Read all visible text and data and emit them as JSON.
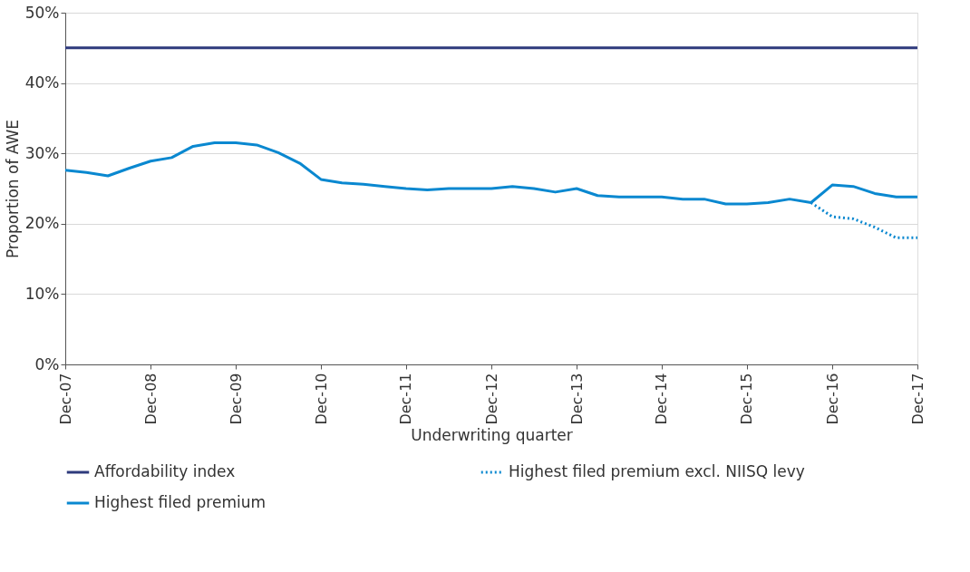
{
  "chart_data": {
    "type": "line",
    "xlabel": "Underwriting quarter",
    "ylabel": "Proportion of AWE",
    "x": [
      "2007-12",
      "2008-03",
      "2008-06",
      "2008-09",
      "2008-12",
      "2009-03",
      "2009-06",
      "2009-09",
      "2009-12",
      "2010-03",
      "2010-06",
      "2010-09",
      "2010-12",
      "2011-03",
      "2011-06",
      "2011-09",
      "2011-12",
      "2012-03",
      "2012-06",
      "2012-09",
      "2012-12",
      "2013-03",
      "2013-06",
      "2013-09",
      "2013-12",
      "2014-03",
      "2014-06",
      "2014-09",
      "2014-12",
      "2015-03",
      "2015-06",
      "2015-09",
      "2015-12",
      "2016-03",
      "2016-06",
      "2016-09",
      "2016-12",
      "2017-03",
      "2017-06",
      "2017-09",
      "2017-12"
    ],
    "series": [
      {
        "name": "Affordability index",
        "color": "#2e3a7c",
        "line_style": "solid",
        "values": [
          45,
          45,
          45,
          45,
          45,
          45,
          45,
          45,
          45,
          45,
          45,
          45,
          45,
          45,
          45,
          45,
          45,
          45,
          45,
          45,
          45,
          45,
          45,
          45,
          45,
          45,
          45,
          45,
          45,
          45,
          45,
          45,
          45,
          45,
          45,
          45,
          45,
          45,
          45,
          45,
          45
        ]
      },
      {
        "name": "Highest filed premium excl. NIISQ levy",
        "color": "#0a88d0",
        "line_style": "dotted",
        "x": [
          "2016-09",
          "2016-12",
          "2017-03",
          "2017-06",
          "2017-09",
          "2017-12"
        ],
        "values": [
          23.0,
          21.0,
          20.7,
          19.5,
          18.0,
          18.0
        ]
      },
      {
        "name": "Highest filed premium",
        "color": "#0a88d0",
        "line_style": "solid",
        "values": [
          27.6,
          27.3,
          26.8,
          27.9,
          28.9,
          29.4,
          31.0,
          31.5,
          31.5,
          31.2,
          30.1,
          28.6,
          26.3,
          25.8,
          25.6,
          25.3,
          25.0,
          24.8,
          25.0,
          25.0,
          25.0,
          25.3,
          25.0,
          24.5,
          25.0,
          24.0,
          23.8,
          23.8,
          23.8,
          23.5,
          23.5,
          22.8,
          22.8,
          23.0,
          23.5,
          23.0,
          25.5,
          25.3,
          24.3,
          23.8,
          23.8
        ]
      }
    ],
    "xlim": [
      "2007-12",
      "2017-12"
    ],
    "xticks": [
      {
        "value": "2007-12",
        "label": "Dec-07"
      },
      {
        "value": "2008-12",
        "label": "Dec-08"
      },
      {
        "value": "2009-12",
        "label": "Dec-09"
      },
      {
        "value": "2010-12",
        "label": "Dec-10"
      },
      {
        "value": "2011-12",
        "label": "Dec-11"
      },
      {
        "value": "2012-12",
        "label": "Dec-12"
      },
      {
        "value": "2013-12",
        "label": "Dec-13"
      },
      {
        "value": "2014-12",
        "label": "Dec-14"
      },
      {
        "value": "2015-12",
        "label": "Dec-15"
      },
      {
        "value": "2016-12",
        "label": "Dec-16"
      },
      {
        "value": "2017-12",
        "label": "Dec-17"
      }
    ],
    "ylim": [
      0,
      50
    ],
    "yticks": [
      {
        "value": 0,
        "label": "0%"
      },
      {
        "value": 10,
        "label": "10%"
      },
      {
        "value": 20,
        "label": "20%"
      },
      {
        "value": 30,
        "label": "30%"
      },
      {
        "value": 40,
        "label": "40%"
      },
      {
        "value": 50,
        "label": "50%"
      }
    ],
    "grid": "y",
    "legend": "bottom",
    "marker": "none"
  }
}
